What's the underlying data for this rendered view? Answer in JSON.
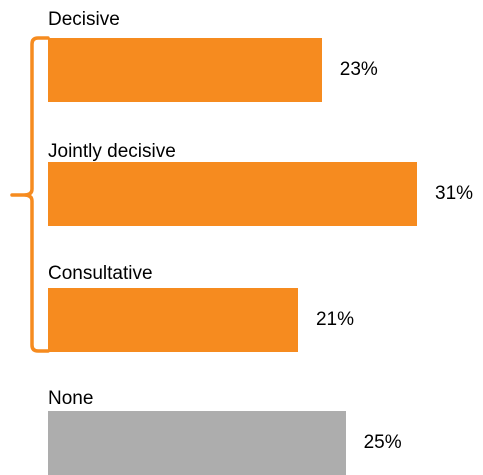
{
  "chart_data": {
    "type": "bar",
    "orientation": "horizontal",
    "categories": [
      "Decisive",
      "Jointly decisive",
      "Consultative",
      "None"
    ],
    "values": [
      23,
      31,
      21,
      25
    ],
    "value_labels": [
      "23%",
      "31%",
      "21%",
      "25%"
    ],
    "unit": "%",
    "xlim": [
      0,
      31
    ],
    "grid": false,
    "axes_visible": false,
    "legend": "none",
    "bracket_groups_categories": [
      "Decisive",
      "Jointly decisive",
      "Consultative"
    ],
    "colors": {
      "Decisive": "#F68B1F",
      "Jointly decisive": "#F68B1F",
      "Consultative": "#F68B1F",
      "None": "#ADADAD"
    },
    "bracket_color": "#F68B1F"
  }
}
